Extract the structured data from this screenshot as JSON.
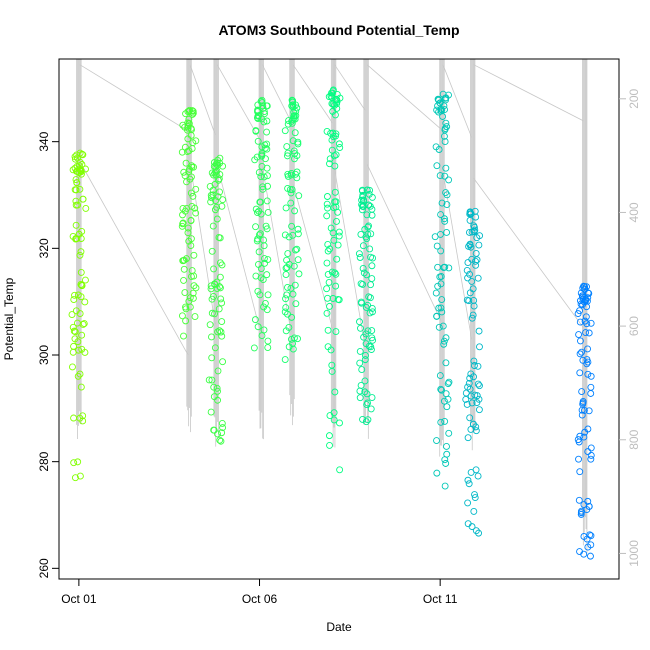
{
  "chart_data": {
    "type": "scatter",
    "title": "ATOM3 Southbound Potential_Temp",
    "xlabel": "Date",
    "ylabel": "Potential_Temp",
    "x_ticks": [
      "Oct 01",
      "Oct 06",
      "Oct 11"
    ],
    "x_tick_days": [
      1,
      6,
      11
    ],
    "xlim": [
      0.45,
      15.95
    ],
    "y_ticks": [
      260,
      280,
      300,
      320,
      340
    ],
    "ylim": [
      258,
      355.5
    ],
    "y2_ticks": [
      200,
      400,
      600,
      800,
      1000
    ],
    "y2lim": [
      1045,
      130
    ],
    "grid": false,
    "legend": "none",
    "colors": {
      "start": "#80ff00",
      "middle": "#00ff80",
      "end": "#0080ff",
      "depth_track": "#c8c8c8",
      "right_axis": "#bebebe"
    },
    "profiles": [
      {
        "day": 1.0,
        "top": 338,
        "bottom": 276,
        "depth_max": 820
      },
      {
        "day": 4.05,
        "top": 346,
        "bottom": 303,
        "depth_max": 800
      },
      {
        "day": 4.8,
        "top": 337,
        "bottom": 283,
        "depth_max": 820
      },
      {
        "day": 6.05,
        "top": 348,
        "bottom": 300,
        "depth_max": 810
      },
      {
        "day": 6.9,
        "top": 348,
        "bottom": 299,
        "depth_max": 790
      },
      {
        "day": 8.05,
        "top": 350,
        "bottom": 278,
        "depth_max": 820
      },
      {
        "day": 8.95,
        "top": 331,
        "bottom": 287,
        "depth_max": 800
      },
      {
        "day": 11.05,
        "top": 349,
        "bottom": 275,
        "depth_max": 830
      },
      {
        "day": 11.9,
        "top": 327,
        "bottom": 266,
        "depth_max": 820
      },
      {
        "day": 15.0,
        "top": 313,
        "bottom": 262,
        "depth_max": 1000
      }
    ]
  }
}
